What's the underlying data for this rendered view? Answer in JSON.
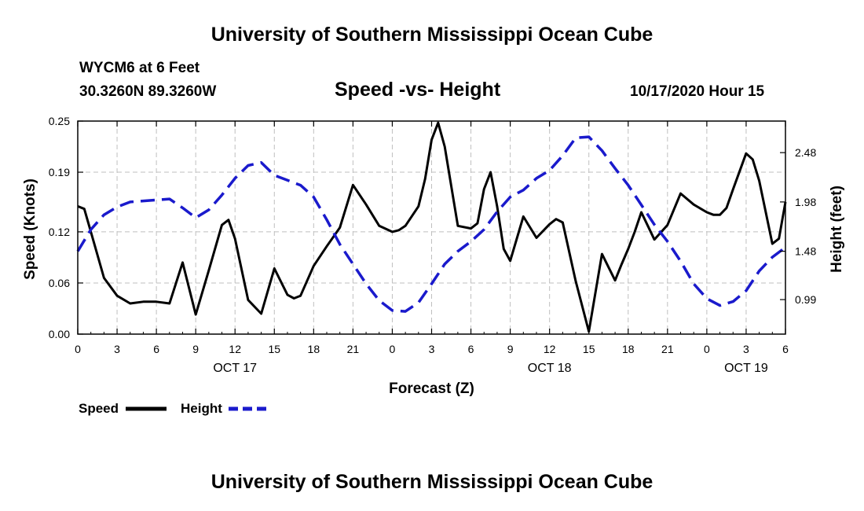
{
  "header": {
    "top_title": "University of Southern Mississippi Ocean Cube",
    "station": "WYCM6 at 6 Feet",
    "coords": "30.3260N 89.3260W",
    "chart_title": "Speed -vs- Height",
    "datetime": "10/17/2020 Hour 15"
  },
  "footer": {
    "bottom_title": "University of Southern Mississippi Ocean Cube"
  },
  "legend": {
    "speed_label": "Speed",
    "height_label": "Height"
  },
  "colors": {
    "speed": "#000000",
    "height": "#1a1acc",
    "grid": "#bfbfbf"
  },
  "chart_data": {
    "type": "line",
    "title": "Speed -vs- Height",
    "xlabel": "Forecast (Z)",
    "ylabel_left": "Speed (Knots)",
    "ylabel_right": "Height (feet)",
    "x_range": [
      0,
      54
    ],
    "x_tick_hours": [
      0,
      3,
      6,
      9,
      12,
      15,
      18,
      21,
      24,
      27,
      30,
      33,
      36,
      39,
      42,
      45,
      48,
      51,
      54
    ],
    "x_tick_labels": [
      "0",
      "3",
      "6",
      "9",
      "12",
      "15",
      "18",
      "21",
      "0",
      "3",
      "6",
      "9",
      "12",
      "15",
      "18",
      "21",
      "0",
      "3",
      "6"
    ],
    "day_labels": [
      {
        "hour": 12,
        "label": "OCT 17"
      },
      {
        "hour": 36,
        "label": "OCT 18"
      },
      {
        "hour": 51,
        "label": "OCT 19"
      }
    ],
    "y_left": {
      "range": [
        0,
        0.25
      ],
      "ticks": [
        0.0,
        0.06,
        0.12,
        0.19,
        0.25
      ],
      "tick_labels": [
        "0.00",
        "0.06",
        "0.12",
        "0.19",
        "0.25"
      ]
    },
    "y_right": {
      "range": [
        0.64,
        2.8
      ],
      "ticks": [
        0.99,
        1.48,
        1.98,
        2.48
      ],
      "tick_labels": [
        "0.99",
        "1.48",
        "1.98",
        "2.48"
      ]
    },
    "series": [
      {
        "name": "Speed",
        "axis": "left",
        "style": "solid",
        "x": [
          0,
          0.5,
          1,
          2,
          3,
          4,
          5,
          6,
          7,
          8,
          9,
          10,
          11,
          11.5,
          12,
          13,
          14,
          15,
          16,
          16.5,
          17,
          18,
          19,
          20,
          21,
          22,
          23,
          24,
          24.5,
          25,
          26,
          26.5,
          27,
          27.5,
          28,
          29,
          30,
          30.5,
          31,
          31.5,
          32,
          32.5,
          33,
          34,
          35,
          36,
          36.5,
          37,
          38,
          39,
          40,
          41,
          41.5,
          42,
          42.5,
          43,
          43.5,
          44,
          45,
          46,
          47,
          48,
          48.5,
          49,
          49.5,
          50,
          51,
          51.5,
          52,
          53,
          53.5,
          54
        ],
        "values": [
          0.15,
          0.147,
          0.12,
          0.066,
          0.045,
          0.036,
          0.038,
          0.038,
          0.036,
          0.084,
          0.023,
          0.075,
          0.128,
          0.134,
          0.112,
          0.04,
          0.024,
          0.077,
          0.046,
          0.042,
          0.045,
          0.08,
          0.103,
          0.125,
          0.175,
          0.152,
          0.127,
          0.12,
          0.122,
          0.127,
          0.15,
          0.182,
          0.228,
          0.248,
          0.22,
          0.127,
          0.124,
          0.13,
          0.17,
          0.19,
          0.15,
          0.1,
          0.086,
          0.138,
          0.113,
          0.129,
          0.135,
          0.131,
          0.062,
          0.003,
          0.094,
          0.063,
          0.082,
          0.1,
          0.12,
          0.143,
          0.127,
          0.111,
          0.128,
          0.165,
          0.152,
          0.143,
          0.14,
          0.14,
          0.148,
          0.17,
          0.212,
          0.205,
          0.18,
          0.106,
          0.112,
          0.155
        ],
        "legend": "Speed"
      },
      {
        "name": "Height",
        "axis": "right",
        "style": "dashed",
        "x": [
          0,
          1,
          2,
          3,
          4,
          5,
          6,
          7,
          8,
          9,
          10,
          11,
          12,
          13,
          14,
          15,
          16,
          17,
          18,
          19,
          20,
          21,
          22,
          23,
          24,
          25,
          26,
          27,
          28,
          29,
          30,
          31,
          32,
          33,
          34,
          35,
          36,
          37,
          38,
          39,
          40,
          41,
          42,
          43,
          44,
          45,
          46,
          47,
          48,
          49,
          50,
          51,
          52,
          53,
          54
        ],
        "values": [
          1.48,
          1.7,
          1.85,
          1.93,
          1.98,
          1.99,
          2.0,
          2.01,
          1.92,
          1.82,
          1.9,
          2.05,
          2.22,
          2.35,
          2.38,
          2.25,
          2.2,
          2.15,
          2.03,
          1.8,
          1.55,
          1.35,
          1.15,
          0.98,
          0.88,
          0.87,
          0.96,
          1.15,
          1.35,
          1.48,
          1.58,
          1.7,
          1.88,
          2.03,
          2.1,
          2.22,
          2.3,
          2.45,
          2.63,
          2.64,
          2.5,
          2.32,
          2.15,
          1.95,
          1.75,
          1.58,
          1.38,
          1.15,
          1.0,
          0.93,
          0.97,
          1.08,
          1.28,
          1.42,
          1.52
        ],
        "legend": "Height"
      }
    ],
    "grid": true,
    "legend_position": "bottom-left"
  }
}
